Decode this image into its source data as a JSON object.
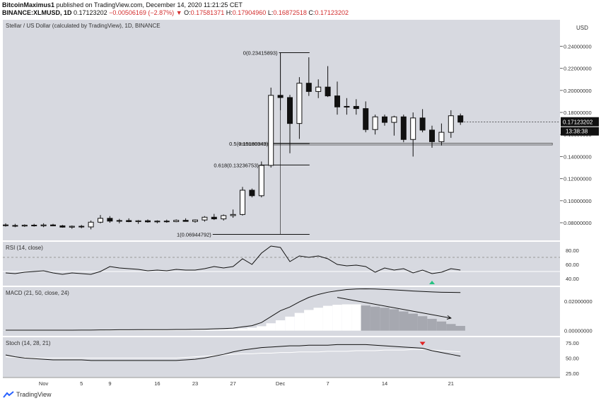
{
  "header": {
    "author": "BitcoinMaximus1",
    "published": "published on TradingView.com, December 14, 2020 11:21:25 CET",
    "symbol": "BINANCE:XLMUSD, 1D",
    "last": "0.17123202",
    "change": "−0.00506169 (−2.87%)",
    "ohlc": [
      {
        "k": "O:",
        "v": "0.17581371"
      },
      {
        "k": "H:",
        "v": "0.17904960"
      },
      {
        "k": "L:",
        "v": "0.16872518"
      },
      {
        "k": "C:",
        "v": "0.17123202"
      }
    ]
  },
  "footer": {
    "brand": "TradingView"
  },
  "colors": {
    "panel_bg": "#d7d9e0",
    "candle_up": "#ffffff",
    "candle_down": "#111111",
    "line": "#111111",
    "bar": "#ffffff",
    "bar_fade": "#a6a8b0",
    "up_arrow": "#26c281",
    "down_arrow": "#e02020",
    "price_tag": "#111111"
  },
  "chart_data": [
    {
      "type": "candlestick",
      "title": "Stellar / US Dollar (calculated by TradingView), 1D, BINANCE",
      "currency": "USD",
      "y_ticks": [
        "0.08000000",
        "0.10000000",
        "0.12000000",
        "0.14000000",
        "0.16000000",
        "0.18000000",
        "0.20000000",
        "0.22000000",
        "0.24000000"
      ],
      "ylim": [
        0.064,
        0.264
      ],
      "x_ticks": [
        "Nov",
        "5",
        "9",
        "16",
        "23",
        "27",
        "Dec",
        "7",
        "14",
        "21"
      ],
      "last_price": "0.17123202",
      "countdown": "13:38:38",
      "fib_levels": [
        {
          "label": "0(0.23415893)",
          "value": 0.23415893
        },
        {
          "label": "0.5(0.15180343)",
          "value": 0.15180343
        },
        {
          "label": "0.618(0.13236753)",
          "value": 0.13236753
        },
        {
          "label": "1(0.06944792)",
          "value": 0.06944792
        }
      ],
      "support_zone": [
        0.1505,
        0.1522
      ],
      "candles": [
        {
          "o": 0.078,
          "h": 0.0795,
          "l": 0.0765,
          "c": 0.0775
        },
        {
          "o": 0.0775,
          "h": 0.079,
          "l": 0.076,
          "c": 0.077
        },
        {
          "o": 0.077,
          "h": 0.0785,
          "l": 0.0762,
          "c": 0.0778
        },
        {
          "o": 0.0778,
          "h": 0.079,
          "l": 0.0765,
          "c": 0.0772
        },
        {
          "o": 0.0772,
          "h": 0.0795,
          "l": 0.076,
          "c": 0.078
        },
        {
          "o": 0.078,
          "h": 0.079,
          "l": 0.0768,
          "c": 0.0772
        },
        {
          "o": 0.0772,
          "h": 0.078,
          "l": 0.0755,
          "c": 0.076
        },
        {
          "o": 0.076,
          "h": 0.0775,
          "l": 0.0745,
          "c": 0.0768
        },
        {
          "o": 0.0768,
          "h": 0.078,
          "l": 0.075,
          "c": 0.0762
        },
        {
          "o": 0.0762,
          "h": 0.082,
          "l": 0.074,
          "c": 0.0805
        },
        {
          "o": 0.0805,
          "h": 0.087,
          "l": 0.0795,
          "c": 0.084
        },
        {
          "o": 0.084,
          "h": 0.086,
          "l": 0.08,
          "c": 0.0815
        },
        {
          "o": 0.0815,
          "h": 0.0835,
          "l": 0.0795,
          "c": 0.082
        },
        {
          "o": 0.082,
          "h": 0.084,
          "l": 0.0805,
          "c": 0.081
        },
        {
          "o": 0.081,
          "h": 0.0825,
          "l": 0.079,
          "c": 0.0818
        },
        {
          "o": 0.0818,
          "h": 0.083,
          "l": 0.08,
          "c": 0.0808
        },
        {
          "o": 0.0808,
          "h": 0.0822,
          "l": 0.0795,
          "c": 0.0815
        },
        {
          "o": 0.0815,
          "h": 0.0828,
          "l": 0.08,
          "c": 0.081
        },
        {
          "o": 0.081,
          "h": 0.083,
          "l": 0.0805,
          "c": 0.0822
        },
        {
          "o": 0.0822,
          "h": 0.084,
          "l": 0.081,
          "c": 0.0812
        },
        {
          "o": 0.0812,
          "h": 0.083,
          "l": 0.08,
          "c": 0.0825
        },
        {
          "o": 0.0825,
          "h": 0.086,
          "l": 0.081,
          "c": 0.085
        },
        {
          "o": 0.085,
          "h": 0.088,
          "l": 0.0825,
          "c": 0.0835
        },
        {
          "o": 0.0835,
          "h": 0.0875,
          "l": 0.082,
          "c": 0.0865
        },
        {
          "o": 0.0865,
          "h": 0.092,
          "l": 0.0845,
          "c": 0.0875
        },
        {
          "o": 0.0875,
          "h": 0.1125,
          "l": 0.0865,
          "c": 0.1095
        },
        {
          "o": 0.1095,
          "h": 0.111,
          "l": 0.103,
          "c": 0.1045
        },
        {
          "o": 0.1045,
          "h": 0.1355,
          "l": 0.103,
          "c": 0.132
        },
        {
          "o": 0.132,
          "h": 0.2025,
          "l": 0.13,
          "c": 0.1955
        },
        {
          "o": 0.1955,
          "h": 0.2342,
          "l": 0.182,
          "c": 0.1935
        },
        {
          "o": 0.1935,
          "h": 0.196,
          "l": 0.143,
          "c": 0.17
        },
        {
          "o": 0.17,
          "h": 0.212,
          "l": 0.156,
          "c": 0.2065
        },
        {
          "o": 0.2065,
          "h": 0.23,
          "l": 0.195,
          "c": 0.199
        },
        {
          "o": 0.199,
          "h": 0.21,
          "l": 0.193,
          "c": 0.203
        },
        {
          "o": 0.203,
          "h": 0.222,
          "l": 0.194,
          "c": 0.195
        },
        {
          "o": 0.195,
          "h": 0.208,
          "l": 0.178,
          "c": 0.185
        },
        {
          "o": 0.185,
          "h": 0.193,
          "l": 0.178,
          "c": 0.1855
        },
        {
          "o": 0.1855,
          "h": 0.192,
          "l": 0.178,
          "c": 0.1835
        },
        {
          "o": 0.1835,
          "h": 0.19,
          "l": 0.162,
          "c": 0.1645
        },
        {
          "o": 0.1645,
          "h": 0.178,
          "l": 0.16,
          "c": 0.176
        },
        {
          "o": 0.176,
          "h": 0.178,
          "l": 0.168,
          "c": 0.171
        },
        {
          "o": 0.171,
          "h": 0.177,
          "l": 0.159,
          "c": 0.176
        },
        {
          "o": 0.176,
          "h": 0.178,
          "l": 0.153,
          "c": 0.1555
        },
        {
          "o": 0.1555,
          "h": 0.18,
          "l": 0.14,
          "c": 0.175
        },
        {
          "o": 0.175,
          "h": 0.183,
          "l": 0.162,
          "c": 0.164
        },
        {
          "o": 0.164,
          "h": 0.168,
          "l": 0.148,
          "c": 0.1535
        },
        {
          "o": 0.1535,
          "h": 0.17,
          "l": 0.15,
          "c": 0.162
        },
        {
          "o": 0.162,
          "h": 0.182,
          "l": 0.157,
          "c": 0.177
        },
        {
          "o": 0.177,
          "h": 0.179,
          "l": 0.1687,
          "c": 0.1712
        }
      ]
    },
    {
      "type": "line",
      "title": "RSI (14, close)",
      "y_ticks": [
        "40.00",
        "60.00",
        "80.00"
      ],
      "ylim": [
        30,
        92
      ],
      "bands": [
        70,
        50
      ],
      "signal_arrow": {
        "index": 45,
        "dir": "up"
      },
      "values": [
        48,
        47,
        49,
        50,
        51,
        48,
        46,
        48,
        47,
        46,
        50,
        57,
        55,
        54,
        53,
        51,
        52,
        51,
        53,
        52,
        52,
        54,
        57,
        55,
        57,
        68,
        60,
        76,
        86,
        84,
        64,
        72,
        70,
        72,
        68,
        60,
        58,
        59,
        57,
        49,
        55,
        52,
        54,
        48,
        52,
        47,
        49,
        54,
        52
      ]
    },
    {
      "type": "bar",
      "title": "MACD (21, 50, close, 24)",
      "y_ticks": [
        "0.00000000",
        "0.02000000"
      ],
      "ylim": [
        -0.0035,
        0.0295
      ],
      "macd": [
        0.0003,
        0.0003,
        0.0003,
        0.0003,
        0.0003,
        0.0003,
        0.0003,
        0.0003,
        0.0004,
        0.0004,
        0.0005,
        0.0005,
        0.0006,
        0.0006,
        0.0007,
        0.0007,
        0.0007,
        0.0007,
        0.0008,
        0.0008,
        0.0009,
        0.001,
        0.0012,
        0.0014,
        0.0017,
        0.0026,
        0.0034,
        0.0055,
        0.0095,
        0.0135,
        0.016,
        0.0195,
        0.0225,
        0.0245,
        0.026,
        0.027,
        0.0278,
        0.0282,
        0.0283,
        0.0282,
        0.0279,
        0.0276,
        0.0272,
        0.0268,
        0.0265,
        0.0262,
        0.026,
        0.0259,
        0.0258
      ],
      "histogram": [
        0.0001,
        0.0001,
        0.0001,
        0.0001,
        0.0001,
        0.0001,
        0.0001,
        0.0001,
        0.0002,
        0.0002,
        0.0002,
        0.0003,
        0.0003,
        0.0003,
        0.0003,
        0.0004,
        0.0004,
        0.0004,
        0.0004,
        0.0004,
        0.0005,
        0.0006,
        0.0007,
        0.0008,
        0.001,
        0.0015,
        0.002,
        0.003,
        0.005,
        0.007,
        0.0095,
        0.012,
        0.014,
        0.0155,
        0.0168,
        0.0175,
        0.0178,
        0.0178,
        0.017,
        0.0162,
        0.0155,
        0.0145,
        0.013,
        0.0115,
        0.0098,
        0.008,
        0.0062,
        0.0045,
        0.0032
      ],
      "peak_index": 37,
      "trend_arrow": {
        "from": 35,
        "to": 47,
        "y0": 0.0225,
        "y1": 0.0085
      }
    },
    {
      "type": "line",
      "title": "Stoch (14, 28, 21)",
      "y_ticks": [
        "25.00",
        "50.00",
        "75.00"
      ],
      "ylim": [
        18,
        84
      ],
      "signal_arrow": {
        "index": 44,
        "dir": "down"
      },
      "k": [
        55,
        52,
        50,
        49,
        48,
        47,
        47,
        47,
        47,
        46,
        46,
        46,
        46,
        46,
        46,
        46,
        46,
        46,
        46,
        47,
        48,
        50,
        53,
        56,
        60,
        63,
        65,
        67,
        68,
        69,
        70,
        70,
        71,
        71,
        71,
        72,
        72,
        72,
        72,
        71,
        70,
        69,
        68,
        67,
        66,
        62,
        59,
        56,
        53
      ],
      "d": [
        52,
        51,
        51,
        50,
        50,
        50,
        50,
        50,
        50,
        50,
        50,
        50,
        50,
        50,
        50,
        50,
        50,
        50,
        50,
        51,
        52,
        53,
        54,
        55,
        56,
        57,
        57,
        58,
        58,
        59,
        59,
        60,
        60,
        60,
        61,
        61,
        61,
        62,
        62,
        62,
        63,
        63,
        63,
        64,
        64,
        63,
        62,
        61,
        60
      ]
    }
  ]
}
